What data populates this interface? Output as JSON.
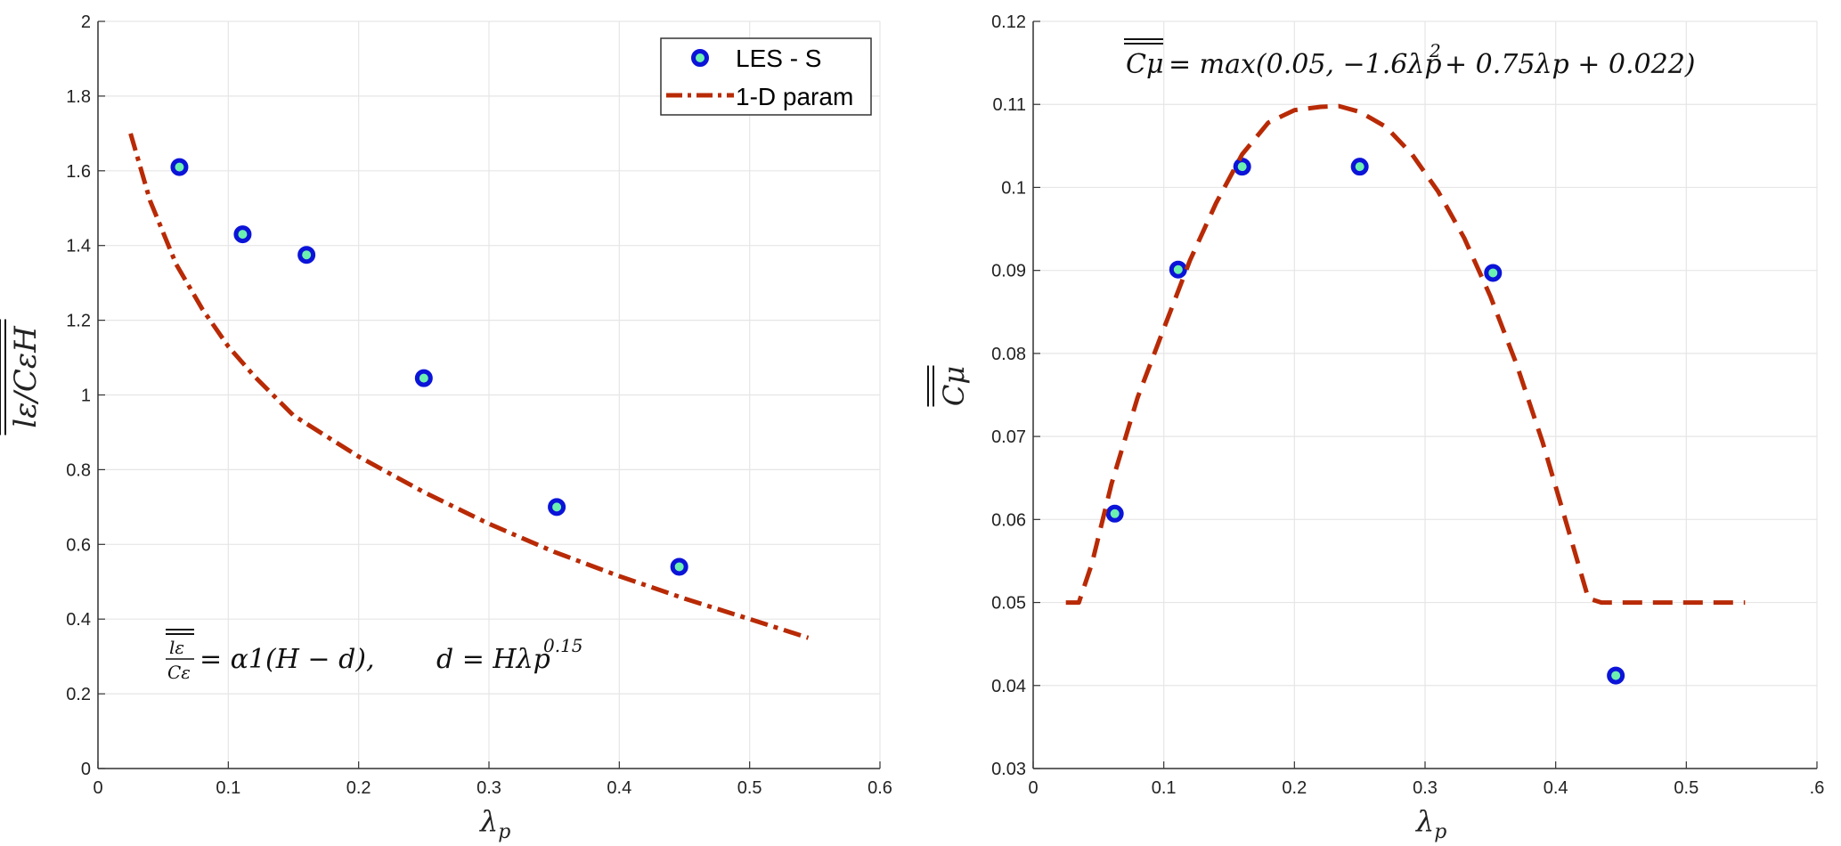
{
  "chart_data": [
    {
      "type": "scatter",
      "xlabel": "λp",
      "ylabel": "lε/CεH",
      "xlim": [
        0,
        0.6
      ],
      "ylim": [
        0,
        2
      ],
      "xticks": [
        "0",
        "0.1",
        "0.2",
        "0.3",
        "0.4",
        "0.5",
        "0.6"
      ],
      "yticks": [
        "0",
        "0.2",
        "0.4",
        "0.6",
        "0.8",
        "1",
        "1.2",
        "1.4",
        "1.6",
        "1.8",
        "2"
      ],
      "grid": true,
      "legend_position": "top-right",
      "legend": [
        "LES - S",
        "1-D param"
      ],
      "annotation": {
        "num": "lε",
        "den": "Cε",
        "eq1": "= α1(H − d),",
        "eq2": "d = Hλp",
        "exp": "0.15"
      },
      "series": [
        {
          "name": "LES - S",
          "kind": "points",
          "color": "#0b14d8",
          "fill": "#6cf0b0",
          "x": [
            0.0625,
            0.111,
            0.16,
            0.25,
            0.352,
            0.446
          ],
          "y": [
            1.61,
            1.43,
            1.375,
            1.045,
            0.7,
            0.54
          ]
        },
        {
          "name": "1-D param",
          "kind": "line",
          "style": "dashdot",
          "color": "#b82a05",
          "x": [
            0.025,
            0.04,
            0.06,
            0.08,
            0.1,
            0.12,
            0.15,
            0.2,
            0.25,
            0.3,
            0.35,
            0.4,
            0.45,
            0.5,
            0.545
          ],
          "y": [
            1.7,
            1.52,
            1.35,
            1.23,
            1.13,
            1.05,
            0.945,
            0.835,
            0.74,
            0.655,
            0.58,
            0.515,
            0.455,
            0.4,
            0.35
          ]
        }
      ]
    },
    {
      "type": "scatter",
      "xlabel": "λp",
      "ylabel": "Cμ",
      "xlim": [
        0,
        0.6
      ],
      "ylim": [
        0.03,
        0.12
      ],
      "xticks": [
        "0",
        "0.1",
        "0.2",
        "0.3",
        "0.4",
        "0.5",
        ".6"
      ],
      "yticks": [
        "0.03",
        "0.04",
        "0.05",
        "0.06",
        "0.07",
        "0.08",
        "0.09",
        "0.1",
        "0.11",
        "0.12"
      ],
      "grid": true,
      "annotation": {
        "lhs": "Cμ",
        "rhs": "= max(0.05, −1.6λp",
        "sup": "2",
        "rest": "+ 0.75λp + 0.022)"
      },
      "series": [
        {
          "name": "",
          "kind": "points",
          "color": "#0b14d8",
          "fill": "#6cf0b0",
          "x": [
            0.0625,
            0.111,
            0.16,
            0.25,
            0.352,
            0.446
          ],
          "y": [
            0.0607,
            0.0901,
            0.1025,
            0.1025,
            0.0897,
            0.0412
          ]
        },
        {
          "name": "",
          "kind": "line",
          "style": "dashed",
          "color": "#b82a05",
          "x": [
            0.025,
            0.035,
            0.045,
            0.06,
            0.08,
            0.1,
            0.12,
            0.14,
            0.16,
            0.18,
            0.2,
            0.22,
            0.234,
            0.25,
            0.27,
            0.29,
            0.31,
            0.33,
            0.35,
            0.37,
            0.39,
            0.41,
            0.425,
            0.435,
            0.45,
            0.5,
            0.545
          ],
          "y": [
            0.05,
            0.05,
            0.0547,
            0.0643,
            0.0747,
            0.083,
            0.0912,
            0.0981,
            0.104,
            0.1078,
            0.1093,
            0.1097,
            0.1098,
            0.1091,
            0.1073,
            0.104,
            0.0995,
            0.0939,
            0.0869,
            0.0787,
            0.0693,
            0.0586,
            0.0505,
            0.05,
            0.05,
            0.05,
            0.05
          ]
        }
      ]
    }
  ]
}
